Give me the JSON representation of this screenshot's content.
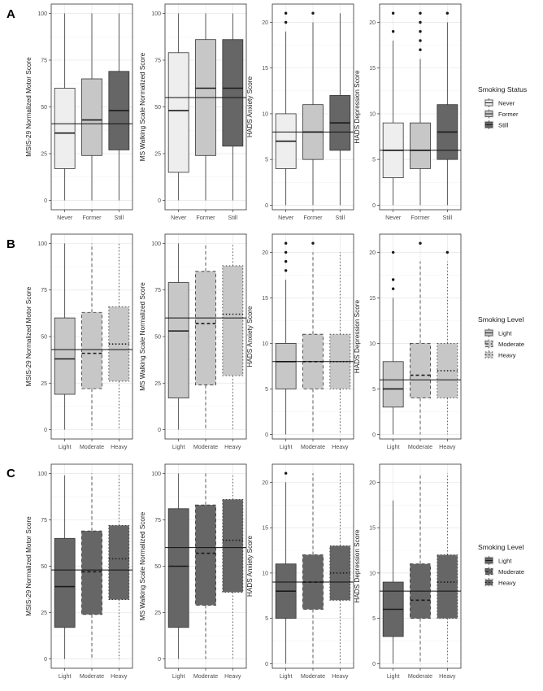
{
  "rows": [
    {
      "label": "A",
      "fill": "#eeeeee",
      "legend": {
        "title": "Smoking Status",
        "entries": [
          {
            "label": "Never",
            "fill": "#eeeeee",
            "dash": "solid"
          },
          {
            "label": "Former",
            "fill": "#c7c7c7",
            "dash": "solid"
          },
          {
            "label": "Still",
            "fill": "#666666",
            "dash": "solid"
          }
        ]
      }
    },
    {
      "label": "B",
      "fill": "#c7c7c7",
      "legend": {
        "title": "Smoking Level",
        "entries": [
          {
            "label": "Light",
            "fill": "#c7c7c7",
            "dash": "solid"
          },
          {
            "label": "Moderate",
            "fill": "#c7c7c7",
            "dash": "dashed"
          },
          {
            "label": "Heavy",
            "fill": "#c7c7c7",
            "dash": "dotted"
          }
        ]
      }
    },
    {
      "label": "C",
      "fill": "#666666",
      "legend": {
        "title": "Smoking Level",
        "entries": [
          {
            "label": "Light",
            "fill": "#666666",
            "dash": "solid"
          },
          {
            "label": "Moderate",
            "fill": "#666666",
            "dash": "dashed"
          },
          {
            "label": "Heavy",
            "fill": "#666666",
            "dash": "dotted"
          }
        ]
      }
    }
  ],
  "chart_data": [
    {
      "type": "box",
      "panel": "A",
      "ylabel": "MSIS-29 Normalized Motor Score",
      "ylim": [
        -5,
        105
      ],
      "yticks": [
        0,
        25,
        50,
        75,
        100
      ],
      "ref_line": 41,
      "categories": [
        "Never",
        "Former",
        "Still"
      ],
      "fills": [
        "#eeeeee",
        "#c7c7c7",
        "#666666"
      ],
      "dashes": [
        "solid",
        "solid",
        "solid"
      ],
      "boxes": [
        {
          "min": 0,
          "q1": 17,
          "median": 36,
          "q3": 60,
          "max": 100,
          "outliers": []
        },
        {
          "min": 0,
          "q1": 24,
          "median": 43,
          "q3": 65,
          "max": 100,
          "outliers": []
        },
        {
          "min": 0,
          "q1": 27,
          "median": 48,
          "q3": 69,
          "max": 100,
          "outliers": []
        }
      ]
    },
    {
      "type": "box",
      "panel": "A",
      "ylabel": "MS Walking Scale Normalized Score",
      "ylim": [
        -5,
        105
      ],
      "yticks": [
        0,
        25,
        50,
        75,
        100
      ],
      "ref_line": 55,
      "categories": [
        "Never",
        "Former",
        "Still"
      ],
      "fills": [
        "#eeeeee",
        "#c7c7c7",
        "#666666"
      ],
      "dashes": [
        "solid",
        "solid",
        "solid"
      ],
      "boxes": [
        {
          "min": 0,
          "q1": 15,
          "median": 48,
          "q3": 79,
          "max": 100,
          "outliers": []
        },
        {
          "min": 0,
          "q1": 24,
          "median": 60,
          "q3": 86,
          "max": 100,
          "outliers": []
        },
        {
          "min": 0,
          "q1": 29,
          "median": 60,
          "q3": 86,
          "max": 100,
          "outliers": []
        }
      ]
    },
    {
      "type": "box",
      "panel": "A",
      "ylabel": "HADS Anxiety Score",
      "ylim": [
        -0.5,
        22
      ],
      "yticks": [
        0,
        5,
        10,
        15,
        20
      ],
      "ref_line": 8,
      "categories": [
        "Never",
        "Former",
        "Still"
      ],
      "fills": [
        "#eeeeee",
        "#c7c7c7",
        "#666666"
      ],
      "dashes": [
        "solid",
        "solid",
        "solid"
      ],
      "boxes": [
        {
          "min": 0,
          "q1": 4,
          "median": 7,
          "q3": 10,
          "max": 19,
          "outliers": [
            20,
            21
          ]
        },
        {
          "min": 0,
          "q1": 5,
          "median": 8,
          "q3": 11,
          "max": 20,
          "outliers": [
            21
          ]
        },
        {
          "min": 0,
          "q1": 6,
          "median": 9,
          "q3": 12,
          "max": 21,
          "outliers": []
        }
      ]
    },
    {
      "type": "box",
      "panel": "A",
      "ylabel": "HADS Depression Score",
      "ylim": [
        -0.5,
        22
      ],
      "yticks": [
        0,
        5,
        10,
        15,
        20
      ],
      "ref_line": 6,
      "categories": [
        "Never",
        "Former",
        "Still"
      ],
      "fills": [
        "#eeeeee",
        "#c7c7c7",
        "#666666"
      ],
      "dashes": [
        "solid",
        "solid",
        "solid"
      ],
      "boxes": [
        {
          "min": 0,
          "q1": 3,
          "median": 6,
          "q3": 9,
          "max": 18,
          "outliers": [
            19,
            21
          ]
        },
        {
          "min": 0,
          "q1": 4,
          "median": 6,
          "q3": 9,
          "max": 16,
          "outliers": [
            17,
            18,
            19,
            20,
            21
          ]
        },
        {
          "min": 0,
          "q1": 5,
          "median": 8,
          "q3": 11,
          "max": 20,
          "outliers": [
            21
          ]
        }
      ]
    },
    {
      "type": "box",
      "panel": "B",
      "ylabel": "MSIS-29 Normalized Motor Score",
      "ylim": [
        -5,
        105
      ],
      "yticks": [
        0,
        25,
        50,
        75,
        100
      ],
      "ref_line": 43,
      "categories": [
        "Light",
        "Moderate",
        "Heavy"
      ],
      "fills": [
        "#c7c7c7",
        "#c7c7c7",
        "#c7c7c7"
      ],
      "dashes": [
        "solid",
        "dashed",
        "dotted"
      ],
      "boxes": [
        {
          "min": 0,
          "q1": 19,
          "median": 38,
          "q3": 60,
          "max": 100,
          "outliers": []
        },
        {
          "min": 0,
          "q1": 22,
          "median": 41,
          "q3": 63,
          "max": 100,
          "outliers": []
        },
        {
          "min": 0,
          "q1": 26,
          "median": 46,
          "q3": 66,
          "max": 100,
          "outliers": []
        }
      ]
    },
    {
      "type": "box",
      "panel": "B",
      "ylabel": "MS Walking Scale Normalized Score",
      "ylim": [
        -5,
        105
      ],
      "yticks": [
        0,
        25,
        50,
        75,
        100
      ],
      "ref_line": 60,
      "categories": [
        "Light",
        "Moderate",
        "Heavy"
      ],
      "fills": [
        "#c7c7c7",
        "#c7c7c7",
        "#c7c7c7"
      ],
      "dashes": [
        "solid",
        "dashed",
        "dotted"
      ],
      "boxes": [
        {
          "min": 0,
          "q1": 17,
          "median": 53,
          "q3": 79,
          "max": 100,
          "outliers": []
        },
        {
          "min": 0,
          "q1": 24,
          "median": 57,
          "q3": 85,
          "max": 100,
          "outliers": []
        },
        {
          "min": 0,
          "q1": 29,
          "median": 62,
          "q3": 88,
          "max": 100,
          "outliers": []
        }
      ]
    },
    {
      "type": "box",
      "panel": "B",
      "ylabel": "HADS Anxiety Score",
      "ylim": [
        -0.5,
        22
      ],
      "yticks": [
        0,
        5,
        10,
        15,
        20
      ],
      "ref_line": 8,
      "categories": [
        "Light",
        "Moderate",
        "Heavy"
      ],
      "fills": [
        "#c7c7c7",
        "#c7c7c7",
        "#c7c7c7"
      ],
      "dashes": [
        "solid",
        "dashed",
        "dotted"
      ],
      "boxes": [
        {
          "min": 0,
          "q1": 5,
          "median": 8,
          "q3": 10,
          "max": 17,
          "outliers": [
            18,
            19,
            20,
            21
          ]
        },
        {
          "min": 0,
          "q1": 5,
          "median": 8,
          "q3": 11,
          "max": 20,
          "outliers": [
            21
          ]
        },
        {
          "min": 0,
          "q1": 5,
          "median": 8,
          "q3": 11,
          "max": 20,
          "outliers": []
        }
      ]
    },
    {
      "type": "box",
      "panel": "B",
      "ylabel": "HADS Depression Score",
      "ylim": [
        -0.5,
        22
      ],
      "yticks": [
        0,
        5,
        10,
        15,
        20
      ],
      "ref_line": 6,
      "categories": [
        "Light",
        "Moderate",
        "Heavy"
      ],
      "fills": [
        "#c7c7c7",
        "#c7c7c7",
        "#c7c7c7"
      ],
      "dashes": [
        "solid",
        "dashed",
        "dotted"
      ],
      "boxes": [
        {
          "min": 0,
          "q1": 3,
          "median": 5,
          "q3": 8,
          "max": 15,
          "outliers": [
            16,
            17,
            20
          ]
        },
        {
          "min": 0,
          "q1": 4,
          "median": 6.5,
          "q3": 10,
          "max": 19,
          "outliers": [
            21
          ]
        },
        {
          "min": 0,
          "q1": 4,
          "median": 7,
          "q3": 10,
          "max": 19,
          "outliers": [
            20
          ]
        }
      ]
    },
    {
      "type": "box",
      "panel": "C",
      "ylabel": "MSIS-29 Normalized Motor Score",
      "ylim": [
        -5,
        105
      ],
      "yticks": [
        0,
        25,
        50,
        75,
        100
      ],
      "ref_line": 48,
      "categories": [
        "Light",
        "Moderate",
        "Heavy"
      ],
      "fills": [
        "#666666",
        "#666666",
        "#666666"
      ],
      "dashes": [
        "solid",
        "dashed",
        "dotted"
      ],
      "boxes": [
        {
          "min": 0,
          "q1": 17,
          "median": 39,
          "q3": 65,
          "max": 99,
          "outliers": []
        },
        {
          "min": 0,
          "q1": 24,
          "median": 47,
          "q3": 69,
          "max": 100,
          "outliers": []
        },
        {
          "min": 0,
          "q1": 32,
          "median": 54,
          "q3": 72,
          "max": 100,
          "outliers": []
        }
      ]
    },
    {
      "type": "box",
      "panel": "C",
      "ylabel": "MS Walking Scale Normalized Score",
      "ylim": [
        -5,
        105
      ],
      "yticks": [
        0,
        25,
        50,
        75,
        100
      ],
      "ref_line": 60,
      "categories": [
        "Light",
        "Moderate",
        "Heavy"
      ],
      "fills": [
        "#666666",
        "#666666",
        "#666666"
      ],
      "dashes": [
        "solid",
        "dashed",
        "dotted"
      ],
      "boxes": [
        {
          "min": 0,
          "q1": 17,
          "median": 50,
          "q3": 81,
          "max": 100,
          "outliers": []
        },
        {
          "min": 0,
          "q1": 29,
          "median": 57,
          "q3": 83,
          "max": 100,
          "outliers": []
        },
        {
          "min": 0,
          "q1": 36,
          "median": 64,
          "q3": 86,
          "max": 100,
          "outliers": []
        }
      ]
    },
    {
      "type": "box",
      "panel": "C",
      "ylabel": "HADS Anxiety Score",
      "ylim": [
        -0.5,
        22
      ],
      "yticks": [
        0,
        5,
        10,
        15,
        20
      ],
      "ref_line": 9,
      "categories": [
        "Light",
        "Moderate",
        "Heavy"
      ],
      "fills": [
        "#666666",
        "#666666",
        "#666666"
      ],
      "dashes": [
        "solid",
        "dashed",
        "dotted"
      ],
      "boxes": [
        {
          "min": 0,
          "q1": 5,
          "median": 8,
          "q3": 11,
          "max": 20,
          "outliers": [
            21
          ]
        },
        {
          "min": 0,
          "q1": 6,
          "median": 9,
          "q3": 12,
          "max": 21,
          "outliers": []
        },
        {
          "min": 0,
          "q1": 7,
          "median": 10,
          "q3": 13,
          "max": 21,
          "outliers": []
        }
      ]
    },
    {
      "type": "box",
      "panel": "C",
      "ylabel": "HADS Depression Score",
      "ylim": [
        -0.5,
        22
      ],
      "yticks": [
        0,
        5,
        10,
        15,
        20
      ],
      "ref_line": 8,
      "categories": [
        "Light",
        "Moderate",
        "Heavy"
      ],
      "fills": [
        "#666666",
        "#666666",
        "#666666"
      ],
      "dashes": [
        "solid",
        "dashed",
        "dotted"
      ],
      "boxes": [
        {
          "min": 0,
          "q1": 3,
          "median": 6,
          "q3": 9,
          "max": 18,
          "outliers": []
        },
        {
          "min": 0,
          "q1": 5,
          "median": 7,
          "q3": 11,
          "max": 21,
          "outliers": []
        },
        {
          "min": 0,
          "q1": 5,
          "median": 9,
          "q3": 12,
          "max": 21,
          "outliers": []
        }
      ]
    }
  ]
}
